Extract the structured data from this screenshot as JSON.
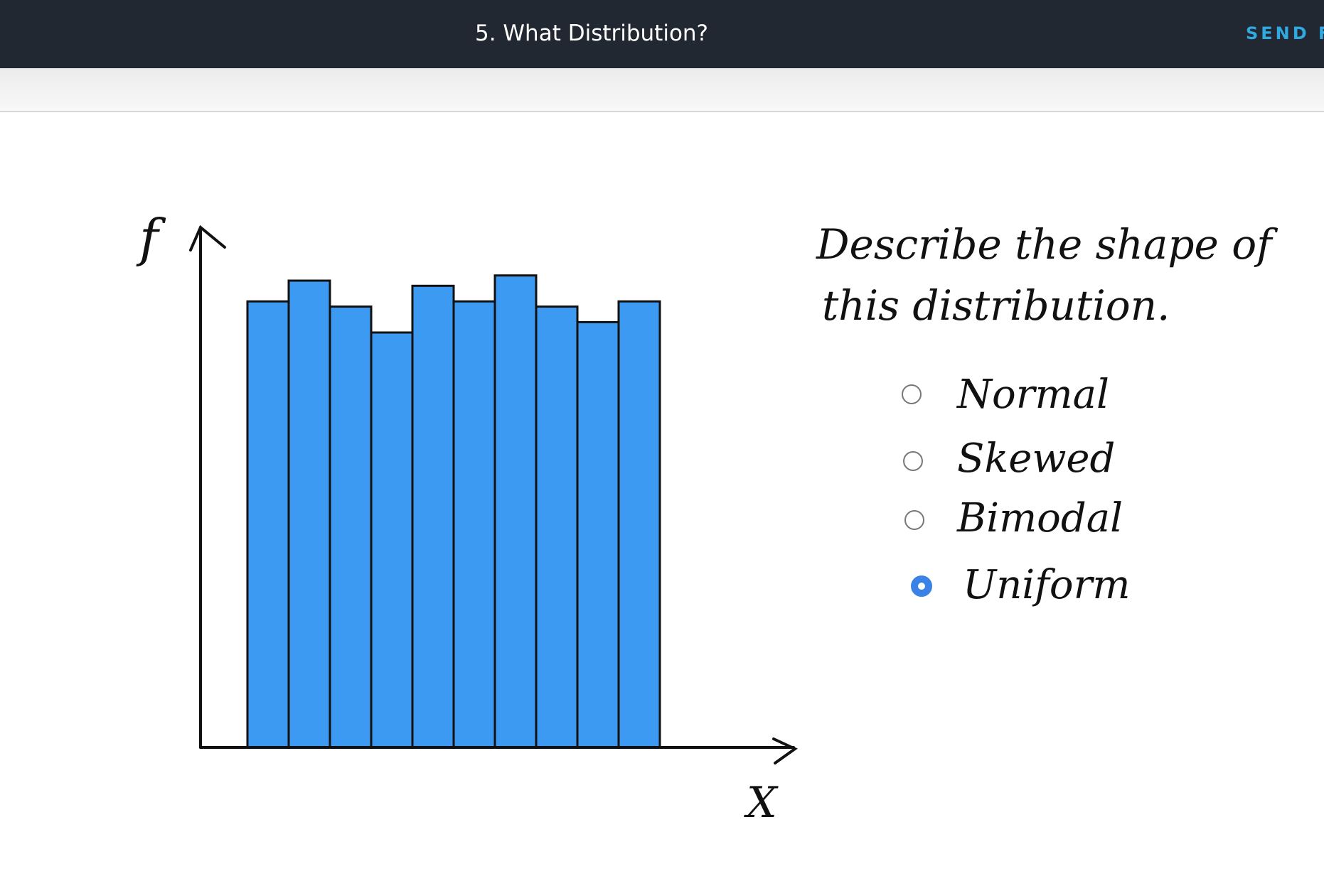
{
  "header": {
    "title": "5. What Distribution?",
    "send_label": "SEND F"
  },
  "question": {
    "line1": "Describe the shape of",
    "line2": "this distribution."
  },
  "options": [
    {
      "label": "Normal",
      "selected": false
    },
    {
      "label": "Skewed",
      "selected": false
    },
    {
      "label": "Bimodal",
      "selected": false
    },
    {
      "label": "Uniform",
      "selected": true
    }
  ],
  "colors": {
    "bar_fill": "#3d9af2",
    "radio_selected": "#3b82e6",
    "header_bg": "#222831",
    "send_color": "#30a8e0"
  },
  "chart_data": {
    "type": "bar",
    "xlabel": "X",
    "ylabel": "f",
    "values": [
      0.86,
      0.9,
      0.85,
      0.8,
      0.89,
      0.86,
      0.91,
      0.85,
      0.82,
      0.86
    ],
    "grid": false
  }
}
